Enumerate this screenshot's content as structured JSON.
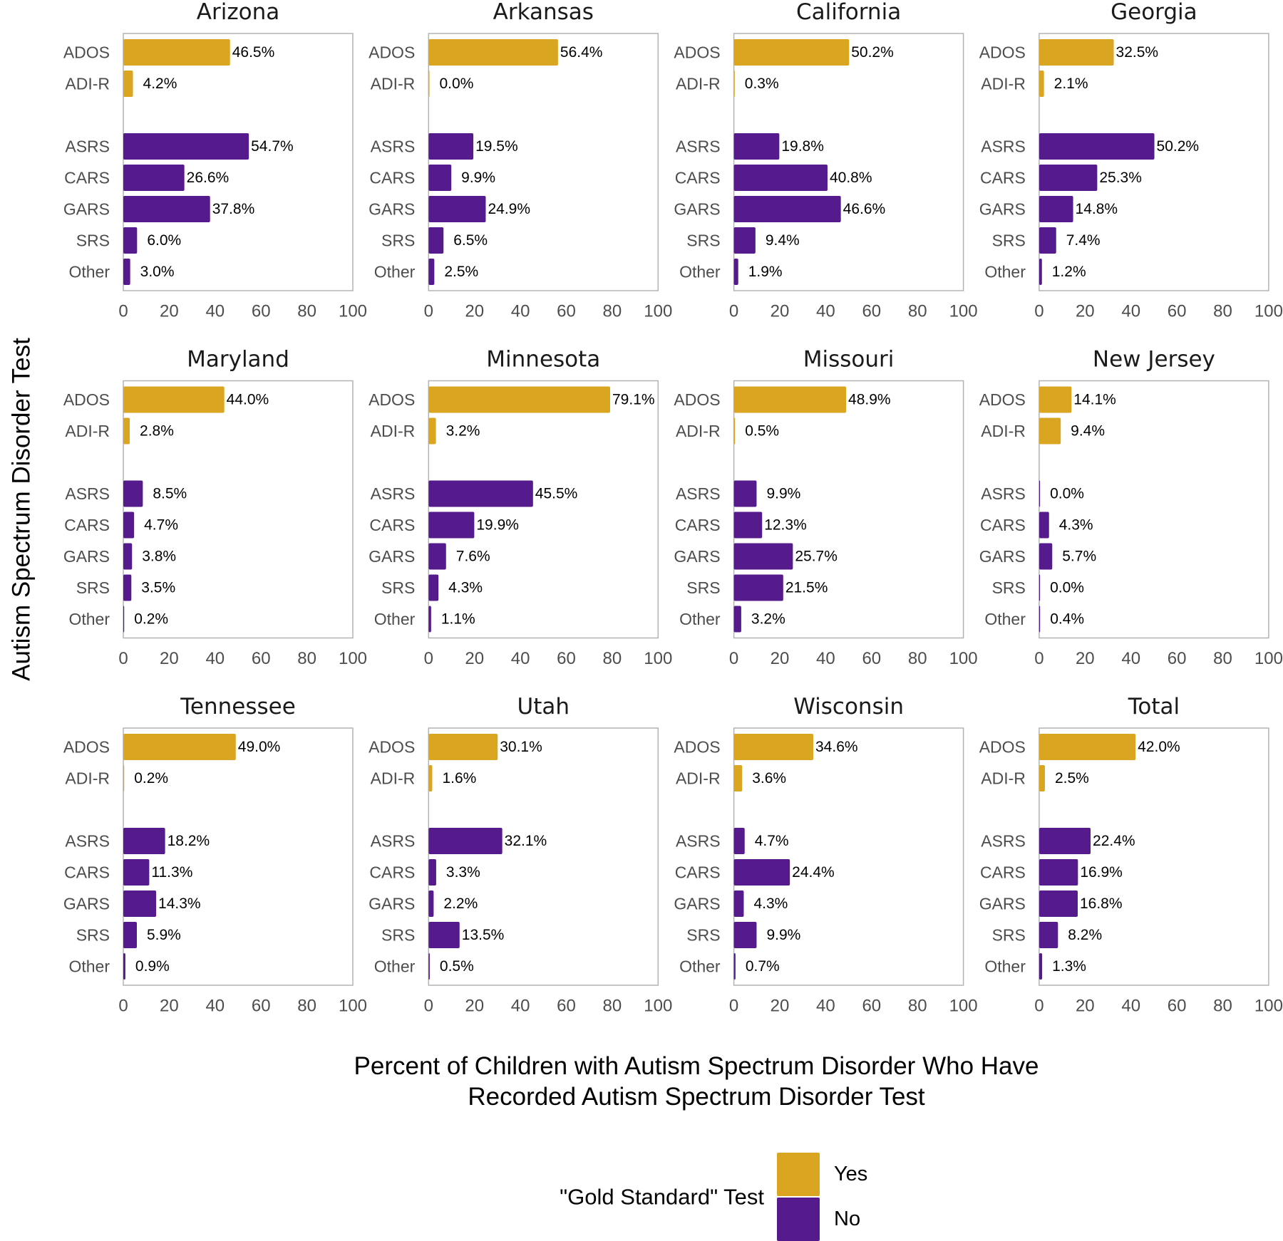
{
  "chart_data": {
    "type": "bar",
    "orientation": "horizontal",
    "layout": "facet-grid 3x4",
    "xlabel": "Percent of Children with Autism Spectrum Disorder Who Have Recorded Autism Spectrum Disorder Test",
    "xlabel_lines": [
      "Percent of Children with Autism Spectrum Disorder Who Have",
      "Recorded Autism Spectrum Disorder Test"
    ],
    "ylabel": "Autism Spectrum Disorder Test",
    "xlim": [
      0,
      100
    ],
    "xticks": [
      0,
      20,
      40,
      60,
      80,
      100
    ],
    "grid": false,
    "categories": [
      "ADOS",
      "ADI-R",
      "ASRS",
      "CARS",
      "GARS",
      "SRS",
      "Other"
    ],
    "category_group": [
      "Yes",
      "Yes",
      "No",
      "No",
      "No",
      "No",
      "No"
    ],
    "legend": {
      "title": "\"Gold Standard\" Test",
      "placement": "bottom-center",
      "entries": [
        {
          "label": "Yes",
          "color": "#DAA520"
        },
        {
          "label": "No",
          "color": "#551A8B"
        }
      ]
    },
    "panels": [
      {
        "title": "Arizona",
        "values": [
          46.5,
          4.2,
          54.7,
          26.6,
          37.8,
          6.0,
          3.0
        ]
      },
      {
        "title": "Arkansas",
        "values": [
          56.4,
          0.0,
          19.5,
          9.9,
          24.9,
          6.5,
          2.5
        ]
      },
      {
        "title": "California",
        "values": [
          50.2,
          0.3,
          19.8,
          40.8,
          46.6,
          9.4,
          1.9
        ]
      },
      {
        "title": "Georgia",
        "values": [
          32.5,
          2.1,
          50.2,
          25.3,
          14.8,
          7.4,
          1.2
        ]
      },
      {
        "title": "Maryland",
        "values": [
          44.0,
          2.8,
          8.5,
          4.7,
          3.8,
          3.5,
          0.2
        ]
      },
      {
        "title": "Minnesota",
        "values": [
          79.1,
          3.2,
          45.5,
          19.9,
          7.6,
          4.3,
          1.1
        ]
      },
      {
        "title": "Missouri",
        "values": [
          48.9,
          0.5,
          9.9,
          12.3,
          25.7,
          21.5,
          3.2
        ]
      },
      {
        "title": "New Jersey",
        "values": [
          14.1,
          9.4,
          0.0,
          4.3,
          5.7,
          0.0,
          0.4
        ]
      },
      {
        "title": "Tennessee",
        "values": [
          49.0,
          0.2,
          18.2,
          11.3,
          14.3,
          5.9,
          0.9
        ]
      },
      {
        "title": "Utah",
        "values": [
          30.1,
          1.6,
          32.1,
          3.3,
          2.2,
          13.5,
          0.5
        ]
      },
      {
        "title": "Wisconsin",
        "values": [
          34.6,
          3.6,
          4.7,
          24.4,
          4.3,
          9.9,
          0.7
        ]
      },
      {
        "title": "Total",
        "values": [
          42.0,
          2.5,
          22.4,
          16.9,
          16.8,
          8.2,
          1.3
        ]
      }
    ],
    "value_label_format": "{value}%"
  }
}
